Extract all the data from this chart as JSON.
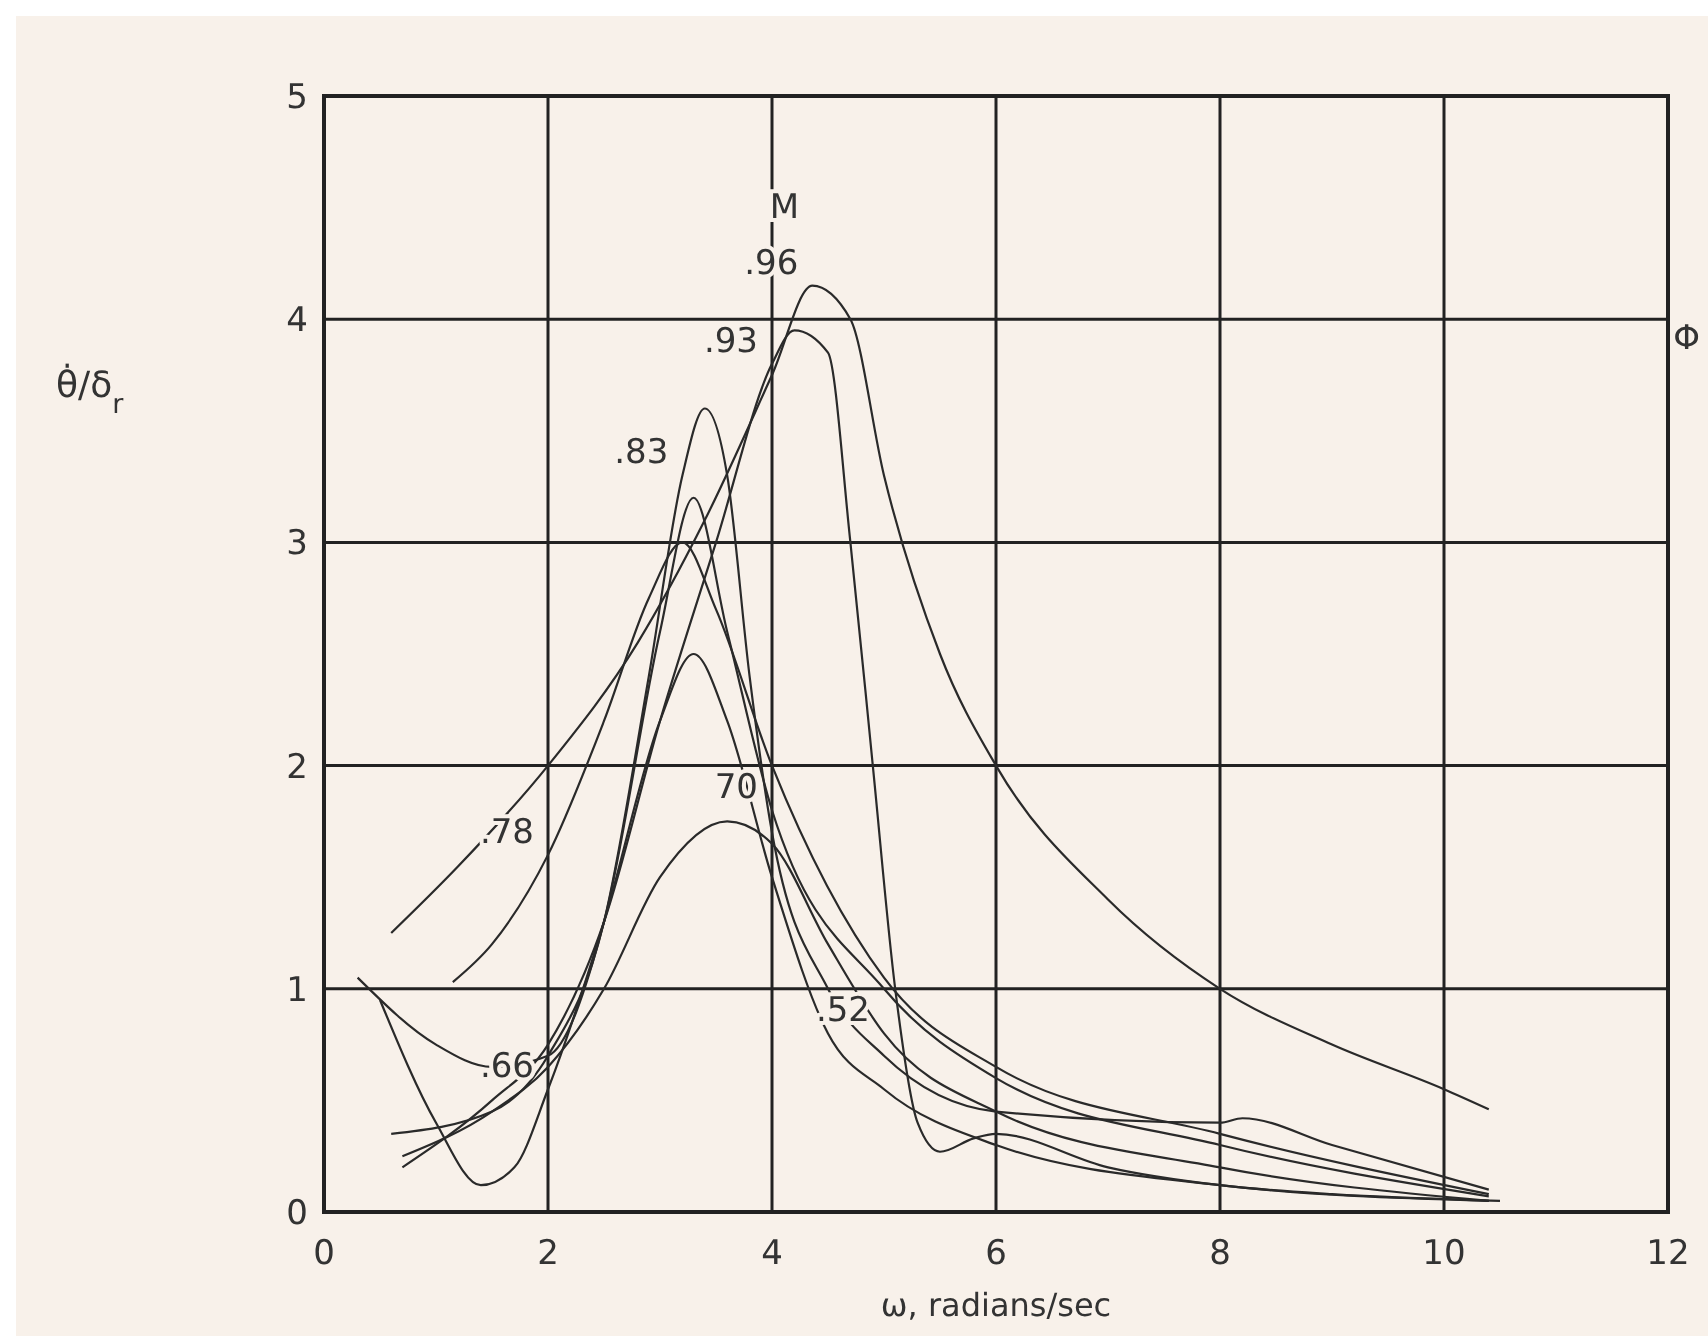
{
  "chart_data": {
    "type": "line",
    "xlabel": "ω, radians/sec",
    "ylabel": "θ̇/δ$_{r}$",
    "xlim": [
      0,
      12
    ],
    "ylim": [
      0,
      5
    ],
    "xticks": [
      0,
      2,
      4,
      6,
      8,
      10,
      12
    ],
    "yticks": [
      0,
      1,
      2,
      3,
      4,
      5
    ],
    "grid": true,
    "line_style": "solid",
    "marker": "none",
    "series": [
      {
        "color": "#2a2a2a",
        "x": [
          0.6,
          1.2,
          2,
          2.8,
          3.4,
          4,
          4.36,
          4.7,
          5,
          5.5,
          6,
          7,
          8,
          9,
          10,
          10.4
        ],
        "values": [
          1.25,
          1.55,
          2.0,
          2.55,
          3.1,
          3.75,
          4.15,
          4.0,
          3.3,
          2.5,
          2.0,
          1.4,
          1.0,
          0.75,
          0.55,
          0.46
        ]
      },
      {
        "color": "#2a2a2a",
        "x": [
          0.7,
          1.5,
          2,
          2.5,
          3,
          3.5,
          4,
          4.2,
          4.5,
          4.7,
          4.9,
          5.1,
          5.3,
          5.5,
          5.8,
          6,
          7,
          8,
          9,
          10.5
        ],
        "values": [
          0.2,
          0.5,
          0.75,
          1.3,
          2.2,
          3.0,
          3.8,
          3.95,
          3.85,
          3.0,
          2.0,
          1.0,
          0.4,
          0.27,
          0.33,
          0.35,
          0.2,
          0.12,
          0.08,
          0.05
        ]
      },
      {
        "color": "#2a2a2a",
        "x": [
          0.6,
          1.5,
          2,
          2.5,
          2.9,
          3.2,
          3.4,
          3.6,
          3.8,
          4,
          4.5,
          5,
          6,
          8,
          8.2,
          9,
          10.4
        ],
        "values": [
          0.35,
          0.45,
          0.7,
          1.3,
          2.4,
          3.3,
          3.6,
          3.3,
          2.4,
          1.7,
          1.0,
          0.7,
          0.45,
          0.4,
          0.42,
          0.3,
          0.1
        ]
      },
      {
        "color": "#2a2a2a",
        "x": [
          1.15,
          1.5,
          2,
          2.5,
          2.9,
          3.2,
          3.5,
          4,
          5,
          6,
          8,
          10.4
        ],
        "values": [
          1.03,
          1.2,
          1.6,
          2.2,
          2.75,
          3.0,
          2.7,
          2.0,
          1.05,
          0.65,
          0.35,
          0.08
        ]
      },
      {
        "color": "#2a2a2a",
        "x": [
          0.3,
          1,
          1.5,
          2,
          2.5,
          3,
          3.3,
          3.6,
          4,
          5,
          6,
          8,
          10.4
        ],
        "values": [
          1.05,
          0.75,
          0.65,
          0.7,
          1.3,
          2.6,
          3.2,
          2.6,
          1.8,
          1.0,
          0.6,
          0.3,
          0.07
        ]
      },
      {
        "color": "#2a2a2a",
        "x": [
          0.5,
          1,
          1.4,
          1.7,
          2,
          2.5,
          3,
          3.3,
          3.6,
          4,
          4.5,
          5,
          6,
          8,
          10.4
        ],
        "values": [
          0.95,
          0.4,
          0.12,
          0.2,
          0.55,
          1.3,
          2.2,
          2.5,
          2.2,
          1.5,
          0.8,
          0.55,
          0.3,
          0.12,
          0.05
        ]
      },
      {
        "color": "#2a2a2a",
        "x": [
          0.7,
          1.5,
          2,
          2.5,
          3,
          3.6,
          4,
          4.5,
          5,
          6,
          8,
          10.4
        ],
        "values": [
          0.25,
          0.45,
          0.65,
          1.0,
          1.5,
          1.75,
          1.65,
          1.2,
          0.8,
          0.45,
          0.2,
          0.05
        ]
      }
    ],
    "annotations": [
      {
        "text": ".96",
        "x": 4.36,
        "y": 4.15
      },
      {
        "text": ".93",
        "x": 4,
        "y": 3.8
      },
      {
        "text": ".83",
        "x": 3.2,
        "y": 3.3
      },
      {
        "text": "70",
        "x": 4,
        "y": 1.8
      },
      {
        "text": ".78",
        "x": 2,
        "y": 1.6
      },
      {
        "text": ".66",
        "x": 2,
        "y": 0.55
      },
      {
        "text": ".52",
        "x": 5,
        "y": 0.8
      },
      "M",
      "Φ"
    ]
  }
}
